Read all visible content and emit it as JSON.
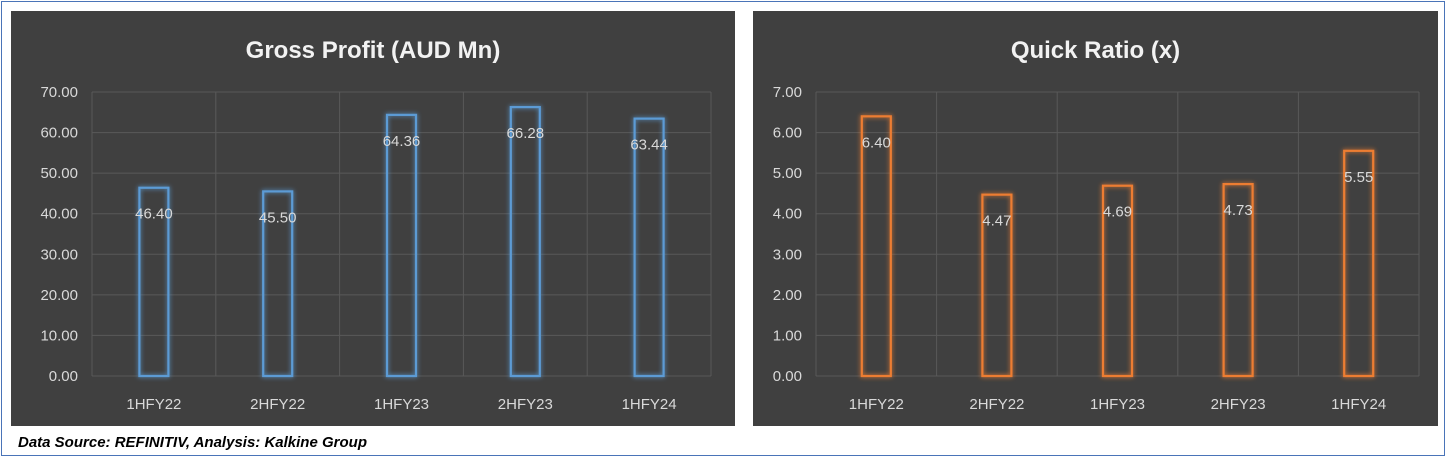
{
  "footer": {
    "source_note": "Data Source: REFINITIV, Analysis: Kalkine Group"
  },
  "colors": {
    "panel_bg": "#404040",
    "grid": "#595959",
    "text": "#d9d9d9",
    "title": "#f2f2f2"
  },
  "chart_data": [
    {
      "type": "bar",
      "title": "Gross Profit (AUD Mn)",
      "categories": [
        "1HFY22",
        "2HFY22",
        "1HFY23",
        "2HFY23",
        "1HFY24"
      ],
      "values": [
        46.4,
        45.5,
        64.36,
        66.28,
        63.44
      ],
      "value_labels": [
        "46.40",
        "45.50",
        "64.36",
        "66.28",
        "63.44"
      ],
      "ylim": [
        0,
        70
      ],
      "yticks": [
        "0.00",
        "10.00",
        "20.00",
        "30.00",
        "40.00",
        "50.00",
        "60.00",
        "70.00"
      ],
      "xlabel": "",
      "ylabel": "",
      "bar_style": "outline-glow",
      "bar_color": "#5b9bd5",
      "grid": true,
      "legend": "none"
    },
    {
      "type": "bar",
      "title": "Quick Ratio (x)",
      "categories": [
        "1HFY22",
        "2HFY22",
        "1HFY23",
        "2HFY23",
        "1HFY24"
      ],
      "values": [
        6.4,
        4.47,
        4.69,
        4.73,
        5.55
      ],
      "value_labels": [
        "6.40",
        "4.47",
        "4.69",
        "4.73",
        "5.55"
      ],
      "ylim": [
        0,
        7
      ],
      "yticks": [
        "0.00",
        "1.00",
        "2.00",
        "3.00",
        "4.00",
        "5.00",
        "6.00",
        "7.00"
      ],
      "xlabel": "",
      "ylabel": "",
      "bar_style": "outline-glow",
      "bar_color": "#ed7d31",
      "grid": true,
      "legend": "none"
    }
  ]
}
